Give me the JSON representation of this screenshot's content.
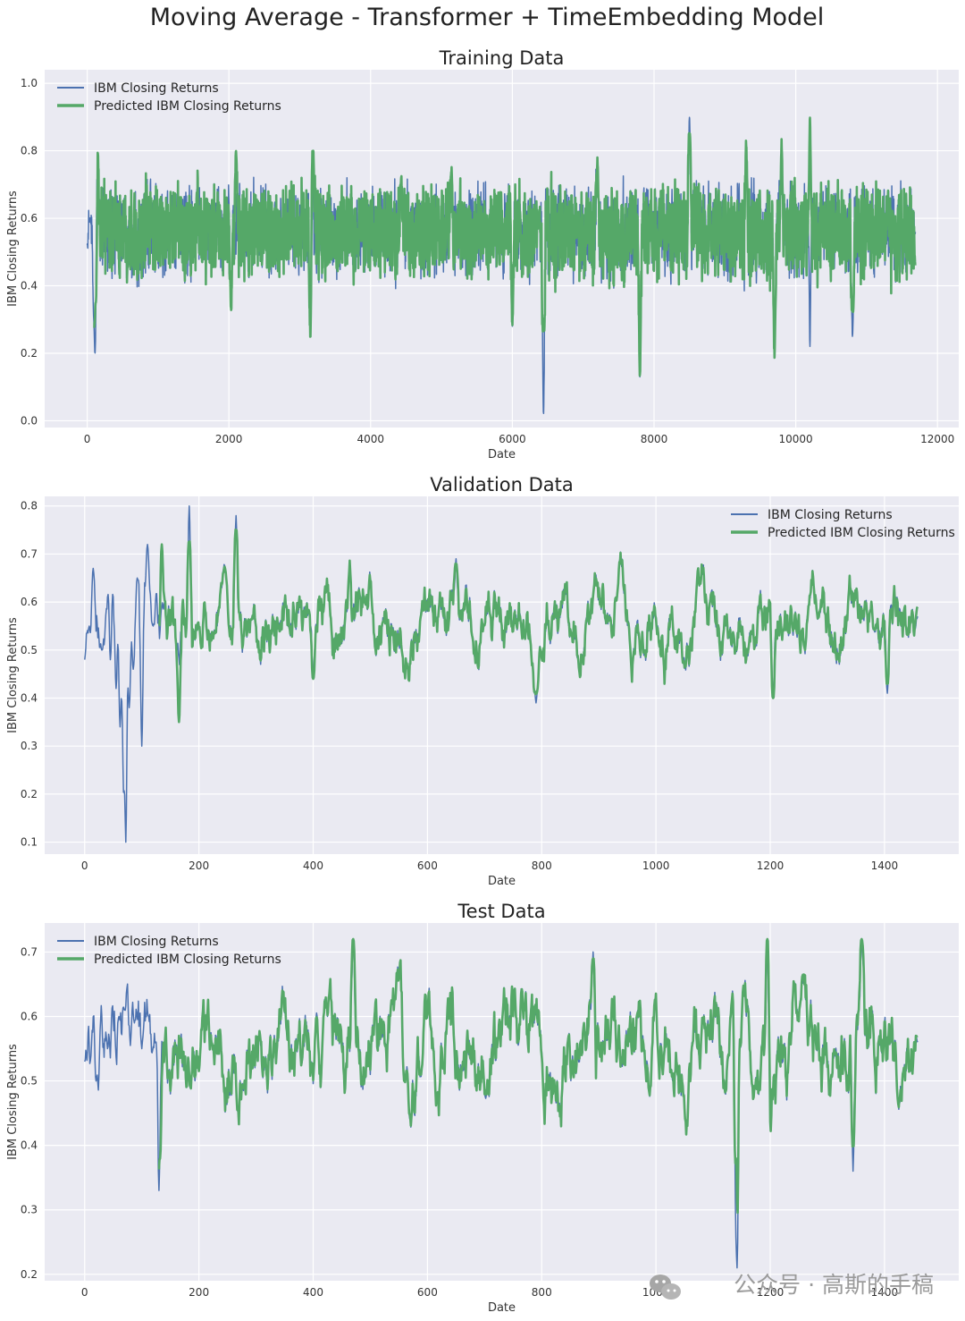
{
  "figure": {
    "title": "Moving Average - Transformer + TimeEmbedding Model",
    "watermark": "公众号 · 高斯的手稿",
    "colors": {
      "background": "#eaeaf2",
      "grid": "#ffffff",
      "actual": "#4c72b0",
      "predicted": "#55a868"
    }
  },
  "chart_data": [
    {
      "type": "line",
      "title": "Training Data",
      "xlabel": "Date",
      "ylabel": "IBM Closing Returns",
      "xlim": [
        -600,
        12300
      ],
      "ylim": [
        -0.02,
        1.04
      ],
      "xticks": [
        0,
        2000,
        4000,
        6000,
        8000,
        10000,
        12000
      ],
      "yticks": [
        0.0,
        0.2,
        0.4,
        0.6,
        0.8,
        1.0
      ],
      "ytick_decimals": 1,
      "legend_position": "upper left",
      "n_points": 11700,
      "grid": true,
      "series": [
        {
          "name": "IBM Closing Returns",
          "color": "#4c72b0",
          "line_width": "thin",
          "start_index": 0,
          "end_index": 11690,
          "mean": 0.56,
          "typical_range": [
            0.46,
            0.68
          ],
          "notable_points": [
            [
              0,
              0.52
            ],
            [
              40,
              0.6
            ],
            [
              90,
              0.36
            ],
            [
              110,
              0.2
            ],
            [
              150,
              0.78
            ],
            [
              2030,
              0.33
            ],
            [
              3170,
              0.85
            ],
            [
              3150,
              0.25
            ],
            [
              4430,
              0.72
            ],
            [
              5140,
              0.75
            ],
            [
              6000,
              0.28
            ],
            [
              6370,
              0.6
            ],
            [
              6440,
              0.02
            ],
            [
              7200,
              0.77
            ],
            [
              7800,
              0.13
            ],
            [
              8500,
              0.9
            ],
            [
              9300,
              0.82
            ],
            [
              9700,
              0.2
            ],
            [
              9800,
              0.82
            ],
            [
              10200,
              0.98
            ],
            [
              10200,
              0.22
            ],
            [
              10800,
              0.25
            ],
            [
              11690,
              0.56
            ]
          ]
        },
        {
          "name": "Predicted IBM Closing Returns",
          "color": "#55a868",
          "line_width": "thick",
          "start_index": 100,
          "end_index": 11690,
          "mean": 0.56,
          "typical_range": [
            0.47,
            0.67
          ],
          "notable_points": [
            [
              120,
              0.35
            ],
            [
              2100,
              0.8
            ],
            [
              3190,
              0.8
            ],
            [
              6440,
              0.3
            ],
            [
              8500,
              0.85
            ],
            [
              10200,
              0.9
            ],
            [
              10800,
              0.33
            ],
            [
              11690,
              0.46
            ]
          ]
        }
      ]
    },
    {
      "type": "line",
      "title": "Validation Data",
      "xlabel": "Date",
      "ylabel": "IBM Closing Returns",
      "xlim": [
        -70,
        1530
      ],
      "ylim": [
        0.075,
        0.82
      ],
      "xticks": [
        0,
        200,
        400,
        600,
        800,
        1000,
        1200,
        1400
      ],
      "yticks": [
        0.1,
        0.2,
        0.3,
        0.4,
        0.5,
        0.6,
        0.7,
        0.8
      ],
      "ytick_decimals": 1,
      "legend_position": "upper right",
      "n_points": 1460,
      "grid": true,
      "series": [
        {
          "name": "IBM Closing Returns",
          "color": "#4c72b0",
          "line_width": "thin",
          "start_index": 0,
          "end_index": 1458,
          "mean": 0.56,
          "typical_range": [
            0.47,
            0.65
          ],
          "notable_points": [
            [
              0,
              0.48
            ],
            [
              8,
              0.55
            ],
            [
              15,
              0.67
            ],
            [
              30,
              0.5
            ],
            [
              45,
              0.48
            ],
            [
              55,
              0.42
            ],
            [
              62,
              0.34
            ],
            [
              68,
              0.22
            ],
            [
              72,
              0.1
            ],
            [
              78,
              0.38
            ],
            [
              85,
              0.46
            ],
            [
              92,
              0.65
            ],
            [
              100,
              0.3
            ],
            [
              110,
              0.72
            ],
            [
              120,
              0.55
            ],
            [
              140,
              0.6
            ],
            [
              183,
              0.8
            ],
            [
              210,
              0.6
            ],
            [
              265,
              0.78
            ],
            [
              400,
              0.44
            ],
            [
              650,
              0.69
            ],
            [
              790,
              0.39
            ],
            [
              1205,
              0.4
            ],
            [
              1405,
              0.41
            ],
            [
              1458,
              0.57
            ]
          ]
        },
        {
          "name": "Predicted IBM Closing Returns",
          "color": "#55a868",
          "line_width": "thick",
          "start_index": 130,
          "end_index": 1458,
          "mean": 0.56,
          "typical_range": [
            0.47,
            0.65
          ],
          "notable_points": [
            [
              135,
              0.72
            ],
            [
              165,
              0.35
            ],
            [
              183,
              0.72
            ],
            [
              265,
              0.75
            ],
            [
              400,
              0.44
            ],
            [
              650,
              0.68
            ],
            [
              790,
              0.41
            ],
            [
              1205,
              0.4
            ],
            [
              1405,
              0.43
            ],
            [
              1458,
              0.59
            ]
          ]
        }
      ]
    },
    {
      "type": "line",
      "title": "Test Data",
      "xlabel": "Date",
      "ylabel": "IBM Closing Returns",
      "xlim": [
        -70,
        1530
      ],
      "ylim": [
        0.19,
        0.745
      ],
      "xticks": [
        0,
        200,
        400,
        600,
        800,
        1000,
        1200,
        1400
      ],
      "yticks": [
        0.2,
        0.3,
        0.4,
        0.5,
        0.6,
        0.7
      ],
      "ytick_decimals": 1,
      "legend_position": "upper left",
      "n_points": 1460,
      "grid": true,
      "series": [
        {
          "name": "IBM Closing Returns",
          "color": "#4c72b0",
          "line_width": "thin",
          "start_index": 0,
          "end_index": 1458,
          "mean": 0.55,
          "typical_range": [
            0.46,
            0.63
          ],
          "notable_points": [
            [
              0,
              0.53
            ],
            [
              20,
              0.5
            ],
            [
              40,
              0.55
            ],
            [
              60,
              0.6
            ],
            [
              70,
              0.61
            ],
            [
              100,
              0.55
            ],
            [
              130,
              0.33
            ],
            [
              470,
              0.72
            ],
            [
              560,
              0.5
            ],
            [
              890,
              0.7
            ],
            [
              1140,
              0.33
            ],
            [
              1142,
              0.21
            ],
            [
              1195,
              0.72
            ],
            [
              1345,
              0.36
            ],
            [
              1360,
              0.72
            ],
            [
              1458,
              0.56
            ]
          ]
        },
        {
          "name": "Predicted IBM Closing Returns",
          "color": "#55a868",
          "line_width": "thick",
          "start_index": 130,
          "end_index": 1458,
          "mean": 0.55,
          "typical_range": [
            0.46,
            0.63
          ],
          "notable_points": [
            [
              132,
              0.38
            ],
            [
              470,
              0.72
            ],
            [
              890,
              0.69
            ],
            [
              1140,
              0.38
            ],
            [
              1195,
              0.72
            ],
            [
              1345,
              0.4
            ],
            [
              1360,
              0.72
            ],
            [
              1458,
              0.57
            ]
          ]
        }
      ]
    }
  ]
}
